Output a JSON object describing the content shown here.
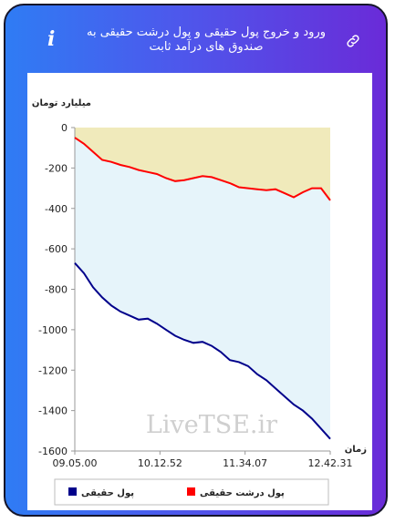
{
  "header": {
    "title": "ورود و خروج پول حقیقی و پول درشت حقیقی به صندوق های درآمد ثابت",
    "info_icon": "info-icon",
    "link_icon": "link-icon"
  },
  "watermark": "LiveTSE.ir",
  "colors": {
    "gradient_start": "#2f7cf4",
    "gradient_end": "#6a2bd8",
    "real_money_line": "#00008b",
    "big_real_money_line": "#ff0000",
    "area_blue": "#e6f4fa",
    "area_yellow": "#f0eabb"
  },
  "chart_data": {
    "type": "area",
    "ylabel": "میلیارد تومان",
    "xlabel": "زمان",
    "ylim": [
      -1600,
      0
    ],
    "yticks": [
      0,
      -200,
      -400,
      -600,
      -800,
      -1000,
      -1200,
      -1400,
      -1600
    ],
    "xticks": [
      "09.05.00",
      "10.12.52",
      "11.34.07",
      "12.42.31"
    ],
    "legend": [
      {
        "key": "big_real",
        "name": "پول درشت حقیقی",
        "color": "#ff0000"
      },
      {
        "key": "real",
        "name": "پول حقیقی",
        "color": "#00008b"
      }
    ],
    "x": [
      0,
      10,
      20,
      30,
      40,
      50,
      60,
      70,
      80,
      90,
      100,
      110,
      120,
      130,
      140,
      150,
      160,
      170,
      180,
      190,
      200,
      210,
      220,
      230,
      240,
      250,
      260,
      270,
      280
    ],
    "series": [
      {
        "key": "big_real",
        "name": "پول درشت حقیقی",
        "values": [
          -50,
          -80,
          -120,
          -160,
          -170,
          -185,
          -195,
          -210,
          -220,
          -230,
          -250,
          -265,
          -260,
          -250,
          -240,
          -245,
          -260,
          -275,
          -295,
          -300,
          -305,
          -310,
          -305,
          -325,
          -345,
          -320,
          -300,
          -300,
          -360
        ]
      },
      {
        "key": "real",
        "name": "پول حقیقی",
        "values": [
          -670,
          -720,
          -790,
          -840,
          -880,
          -910,
          -930,
          -950,
          -945,
          -970,
          -1000,
          -1030,
          -1050,
          -1065,
          -1060,
          -1080,
          -1110,
          -1150,
          -1160,
          -1180,
          -1220,
          -1250,
          -1290,
          -1330,
          -1370,
          -1400,
          -1440,
          -1490,
          -1540
        ]
      }
    ]
  }
}
